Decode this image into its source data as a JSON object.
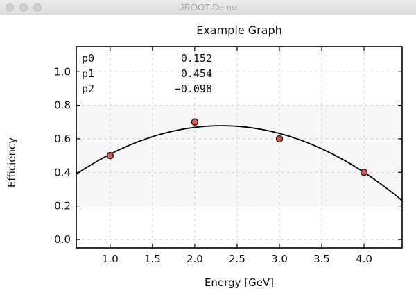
{
  "window": {
    "title": "JROOT Demo"
  },
  "chart_data": {
    "type": "scatter",
    "title": "Example Graph",
    "xlabel": "Energy [GeV]",
    "ylabel": "Efficiency",
    "xlim": [
      0.6,
      4.45
    ],
    "ylim": [
      -0.05,
      1.15
    ],
    "xticks": [
      "1.0",
      "1.5",
      "2.0",
      "2.5",
      "3.0",
      "3.5",
      "4.0"
    ],
    "yticks": [
      "0.0",
      "0.2",
      "0.4",
      "0.6",
      "0.8",
      "1.0"
    ],
    "grid": true,
    "points": [
      {
        "x": 1.0,
        "y": 0.5
      },
      {
        "x": 2.0,
        "y": 0.7
      },
      {
        "x": 3.0,
        "y": 0.6
      },
      {
        "x": 4.0,
        "y": 0.4
      }
    ],
    "fit": {
      "type": "pol2",
      "p0": 0.152,
      "p1": 0.454,
      "p2": -0.098
    },
    "stats_box": [
      {
        "name": "p0",
        "value": "0.152"
      },
      {
        "name": "p1",
        "value": "0.454"
      },
      {
        "name": "p2",
        "value": "−0.098"
      }
    ],
    "colors": {
      "marker_fill": "#d9544a",
      "marker_edge": "#1a1a1a",
      "fit_line": "#000000",
      "grid": "#d4d4d4",
      "band": "#f7f7f7"
    }
  }
}
